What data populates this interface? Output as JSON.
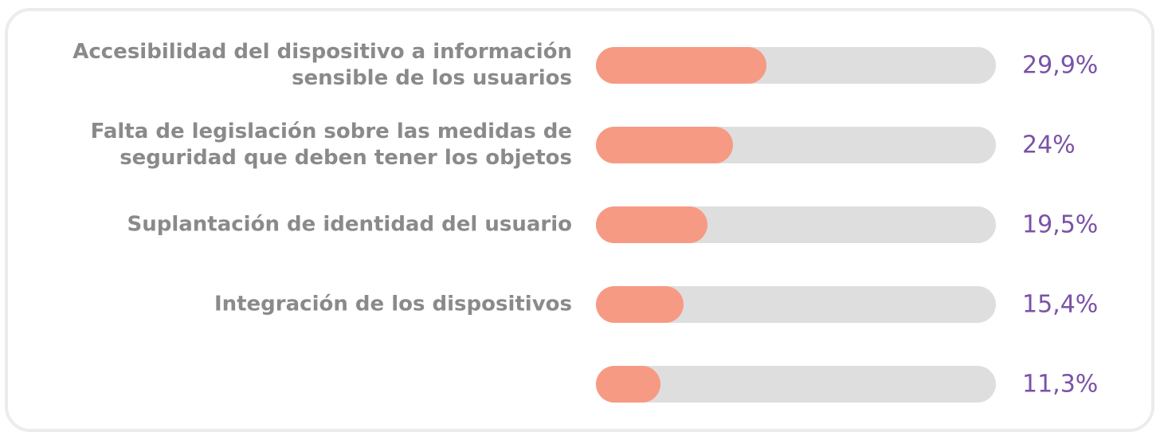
{
  "chart_data": {
    "type": "bar",
    "orientation": "horizontal",
    "categories": [
      "Accesibilidad del dispositivo a información sensible de los usuarios",
      "Falta de legislación sobre las medidas de seguridad que deben tener los objetos",
      "Suplantación de identidad del usuario",
      "Integración de los dispositivos",
      null
    ],
    "values": [
      29.9,
      24,
      19.5,
      15.4,
      11.3
    ],
    "value_labels": [
      "29,9%",
      "24%",
      "19,5%",
      "15,4%",
      "11,3%"
    ],
    "color": "#f79a83",
    "track_color": "#dedede",
    "label_color": "#7a52a8",
    "xlim": [
      0,
      70
    ]
  }
}
